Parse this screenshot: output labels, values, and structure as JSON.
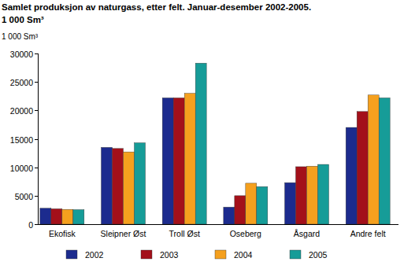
{
  "chart_data": {
    "type": "bar",
    "title": "Samlet produksjon av naturgass, etter felt. Januar-desember 2002-2005.",
    "subtitle": "1 000 Sm³",
    "y_label": "1 000 Sm³",
    "categories": [
      "Ekofisk",
      "Sleipner Øst",
      "Troll Øst",
      "Oseberg",
      "Åsgard",
      "Andre felt"
    ],
    "series": [
      {
        "name": "2002",
        "color": "#1c2b8e",
        "values": [
          2800,
          13500,
          22200,
          3000,
          7300,
          17000
        ]
      },
      {
        "name": "2003",
        "color": "#a3101a",
        "values": [
          2700,
          13300,
          22200,
          5000,
          10100,
          19800
        ]
      },
      {
        "name": "2004",
        "color": "#f5a01e",
        "values": [
          2600,
          12700,
          23000,
          7200,
          10200,
          22700
        ]
      },
      {
        "name": "2005",
        "color": "#169c98",
        "values": [
          2550,
          14300,
          28300,
          6600,
          10500,
          22200
        ]
      }
    ],
    "ylim": [
      0,
      30000
    ],
    "yticks": [
      0,
      5000,
      10000,
      15000,
      20000,
      25000,
      30000
    ],
    "grid": false,
    "legend": "bottom"
  }
}
